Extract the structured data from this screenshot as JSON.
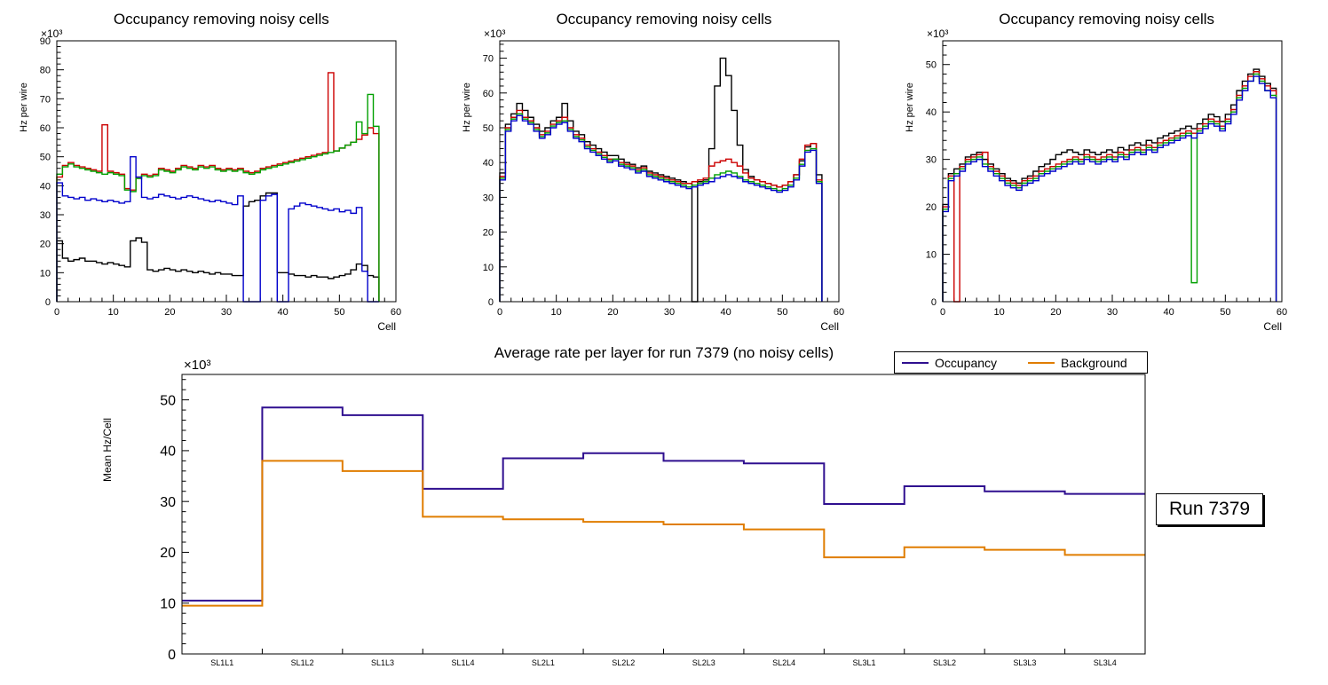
{
  "chart_data": [
    {
      "id": "occupancy-histogram-1",
      "type": "histogram-step",
      "title": "Occupancy removing noisy cells",
      "xlabel": "Cell",
      "ylabel": "Hz per wire",
      "y_exponent": "×10³",
      "xlim": [
        0,
        60
      ],
      "ylim": [
        0,
        90
      ],
      "x_major_ticks": [
        0,
        10,
        20,
        30,
        40,
        50,
        60
      ],
      "y_major_ticks": [
        0,
        10,
        20,
        30,
        40,
        50,
        60,
        70,
        80,
        90
      ],
      "bin_start": 0,
      "bin_width": 1,
      "close_ends": true,
      "grid": false,
      "series": [
        {
          "name": "series-black",
          "color": "#000000",
          "values": [
            21,
            15,
            14,
            14.5,
            15,
            14,
            14,
            13.5,
            13,
            13.5,
            13,
            12.5,
            12,
            21,
            22,
            20.5,
            11,
            10.5,
            11,
            11.5,
            11,
            10.5,
            11,
            10.5,
            10,
            10.5,
            10,
            9.5,
            10,
            9.5,
            9.5,
            9,
            9,
            33,
            34.5,
            35,
            36.5,
            37.5,
            37.5,
            10,
            10,
            9.5,
            9,
            9,
            8.5,
            9,
            8.5,
            8.5,
            8,
            8.5,
            9,
            9.5,
            11,
            13,
            12.5,
            9,
            8.5
          ]
        },
        {
          "name": "series-red",
          "color": "#cc0000",
          "values": [
            43,
            47,
            48,
            47,
            46.5,
            46,
            45.5,
            45,
            61,
            45,
            44.5,
            44,
            39,
            38.5,
            43,
            44,
            43.5,
            44,
            46,
            45.5,
            45,
            46,
            47,
            46.5,
            46,
            47,
            46.5,
            47,
            46,
            45.5,
            46,
            45.5,
            46,
            45,
            44.5,
            45,
            46,
            46.5,
            47,
            47.5,
            48,
            48.5,
            49,
            49.5,
            50,
            50.5,
            51,
            51.5,
            79,
            52,
            53,
            54,
            55,
            56,
            57.5,
            60,
            58
          ]
        },
        {
          "name": "series-green",
          "color": "#00a000",
          "values": [
            44,
            46.5,
            47.5,
            46.5,
            46,
            45.5,
            45,
            44.5,
            44,
            44.5,
            44,
            43.5,
            38.5,
            38,
            42.5,
            43.5,
            43,
            43.5,
            45.5,
            45,
            44.5,
            45.5,
            46.5,
            46,
            45.5,
            46.5,
            46,
            46.5,
            45.5,
            45,
            45.5,
            45,
            45.5,
            44.5,
            44,
            44.5,
            45.5,
            46,
            46.5,
            47,
            47.5,
            48,
            48.5,
            49,
            49.5,
            50,
            50.5,
            51,
            51.5,
            52,
            53,
            54,
            55,
            62,
            58,
            71.5,
            60.5
          ]
        },
        {
          "name": "series-blue",
          "color": "#0000cc",
          "values": [
            41,
            36.5,
            36,
            35.5,
            36,
            35,
            35.5,
            35,
            34.5,
            35,
            34.5,
            34,
            34.5,
            50,
            43,
            36,
            35.5,
            36,
            37,
            36.5,
            36,
            35.5,
            36,
            36.5,
            36,
            35.5,
            35,
            34.5,
            35,
            34.5,
            34,
            33.5,
            36.5,
            0,
            0,
            0,
            35,
            36.5,
            37,
            0,
            0,
            32,
            33,
            34,
            33.5,
            33,
            32.5,
            32,
            31.5,
            32,
            31,
            31.5,
            30.5,
            32.5,
            10.5,
            0,
            0
          ]
        }
      ]
    },
    {
      "id": "occupancy-histogram-2",
      "type": "histogram-step",
      "title": "Occupancy removing noisy cells",
      "xlabel": "Cell",
      "ylabel": "Hz per wire",
      "y_exponent": "×10³",
      "xlim": [
        0,
        60
      ],
      "ylim": [
        0,
        75
      ],
      "x_major_ticks": [
        0,
        10,
        20,
        30,
        40,
        50,
        60
      ],
      "y_major_ticks": [
        0,
        10,
        20,
        30,
        40,
        50,
        60,
        70
      ],
      "bin_start": 0,
      "bin_width": 1,
      "close_ends": true,
      "grid": false,
      "series": [
        {
          "name": "series-black",
          "color": "#000000",
          "values": [
            37,
            51,
            54,
            57,
            55,
            53,
            51,
            49,
            50,
            52,
            53,
            57,
            52,
            49,
            48,
            46,
            45,
            44,
            43,
            42,
            42,
            41,
            40,
            39.5,
            38.5,
            39,
            37.5,
            37,
            36.5,
            36,
            35.5,
            35,
            34.5,
            34,
            0,
            34.5,
            35,
            44,
            62,
            70,
            65,
            55,
            45,
            38,
            36,
            35,
            34.5,
            34,
            33.5,
            33,
            33.5,
            34.5,
            36.5,
            40.5,
            44.5,
            45.5,
            36.5
          ]
        },
        {
          "name": "series-red",
          "color": "#cc0000",
          "values": [
            36,
            50,
            53,
            55,
            53,
            52,
            50,
            48,
            49,
            51,
            52,
            53,
            50,
            48,
            47,
            45,
            44,
            43,
            42,
            41,
            41,
            40,
            39.5,
            39,
            38,
            38.5,
            37,
            36.5,
            36,
            35.5,
            35,
            34.5,
            34,
            34,
            34.5,
            35,
            35.5,
            39,
            40,
            40.5,
            41,
            40,
            39,
            37,
            35.5,
            35,
            34.5,
            34,
            33.5,
            33,
            33.5,
            34.5,
            36.5,
            41,
            45,
            45.5,
            35
          ]
        },
        {
          "name": "series-green",
          "color": "#00a000",
          "values": [
            35.5,
            49.5,
            52.5,
            54,
            52.5,
            51.5,
            49.5,
            47.5,
            48.5,
            50.5,
            51.5,
            52,
            49.5,
            47.5,
            46.5,
            44.5,
            43.5,
            42.5,
            41.5,
            40.5,
            41,
            39.5,
            39,
            38.5,
            37.5,
            38,
            36.5,
            36,
            35.5,
            35,
            34.5,
            34,
            33.5,
            33,
            33.5,
            34,
            34.5,
            35.5,
            36.5,
            37,
            37.5,
            37,
            36,
            35,
            34.5,
            34,
            33.5,
            33,
            32.5,
            32,
            32.5,
            33.5,
            35.5,
            39.5,
            43.5,
            44,
            34.5
          ]
        },
        {
          "name": "series-blue",
          "color": "#0000cc",
          "values": [
            35,
            49,
            52,
            53.5,
            52,
            51,
            49,
            47,
            48,
            50,
            51,
            51.5,
            49,
            47,
            46,
            44,
            43,
            42,
            41,
            40,
            40.5,
            39,
            38.5,
            38,
            37,
            37.5,
            36,
            35.5,
            35,
            34.5,
            34,
            33.5,
            33,
            32.5,
            33,
            33.5,
            34,
            34.5,
            35.5,
            36,
            36.5,
            36,
            35.5,
            34.5,
            34,
            33.5,
            33,
            32.5,
            32,
            31.5,
            32,
            33,
            35,
            39,
            43,
            43.5,
            34
          ]
        }
      ]
    },
    {
      "id": "occupancy-histogram-3",
      "type": "histogram-step",
      "title": "Occupancy removing noisy cells",
      "xlabel": "Cell",
      "ylabel": "Hz per wire",
      "y_exponent": "×10³",
      "xlim": [
        0,
        60
      ],
      "ylim": [
        0,
        55
      ],
      "x_major_ticks": [
        0,
        10,
        20,
        30,
        40,
        50,
        60
      ],
      "y_major_ticks": [
        0,
        10,
        20,
        30,
        40,
        50
      ],
      "bin_start": 0,
      "bin_width": 1,
      "close_ends": true,
      "grid": false,
      "series": [
        {
          "name": "series-black",
          "color": "#000000",
          "values": [
            20.5,
            27,
            28,
            29,
            30.5,
            31,
            31.5,
            30,
            29,
            28,
            27,
            26,
            25.5,
            25,
            26,
            26.5,
            27.5,
            28.5,
            29,
            30,
            31,
            31.5,
            32,
            31.5,
            31,
            32,
            31.5,
            31,
            31.5,
            32,
            31.5,
            32.5,
            32,
            33,
            33.5,
            33,
            34,
            33.5,
            34.5,
            35,
            35.5,
            36,
            36.5,
            37,
            36.5,
            37.5,
            38.5,
            39.5,
            39,
            38,
            39.5,
            41.5,
            44.5,
            46.5,
            48,
            49,
            47.5,
            46,
            45
          ]
        },
        {
          "name": "series-red",
          "color": "#cc0000",
          "values": [
            20,
            26.5,
            0,
            28.5,
            30,
            30.5,
            31,
            31.5,
            28.5,
            27.5,
            26.5,
            25.5,
            25,
            24.5,
            25.5,
            26,
            26.5,
            27.5,
            28,
            28.5,
            29,
            29.5,
            30,
            30.5,
            30,
            31,
            30.5,
            30,
            30.5,
            31,
            30.5,
            31.5,
            31,
            32,
            32.5,
            32,
            33,
            32.5,
            33.5,
            34,
            34.5,
            35,
            35.5,
            36,
            35.5,
            36.5,
            37.5,
            38.5,
            38,
            37,
            38.5,
            40.5,
            43.5,
            45.5,
            47.5,
            48.5,
            47,
            45.5,
            44.5
          ]
        },
        {
          "name": "series-green",
          "color": "#00a000",
          "values": [
            19.5,
            26,
            27,
            28,
            29.5,
            30,
            30.5,
            29,
            28,
            27,
            26,
            25,
            24.5,
            24,
            25,
            25.5,
            26,
            27,
            27.5,
            28,
            28.5,
            29,
            29.5,
            30,
            29.5,
            30.5,
            30,
            29.5,
            30,
            30.5,
            30,
            31,
            30.5,
            31.5,
            32,
            31.5,
            32.5,
            32,
            33,
            33.5,
            34,
            34.5,
            35,
            35.5,
            4,
            36,
            37,
            38,
            37.5,
            36.5,
            38,
            40,
            43,
            45,
            46.5,
            48,
            46.5,
            44.5,
            43.5
          ]
        },
        {
          "name": "series-blue",
          "color": "#0000cc",
          "values": [
            19,
            25.5,
            26.5,
            27.5,
            29,
            29.5,
            30,
            28.5,
            27.5,
            26.5,
            25.5,
            24.5,
            24,
            23.5,
            24.5,
            25,
            25.5,
            26.5,
            27,
            27.5,
            28,
            28.5,
            29,
            29.5,
            29,
            30,
            29.5,
            29,
            29.5,
            30,
            29.5,
            30.5,
            30,
            31,
            31.5,
            31,
            32,
            31.5,
            32.5,
            33,
            33.5,
            34,
            34.5,
            35,
            34.5,
            35.5,
            36.5,
            37.5,
            37,
            36,
            37.5,
            39.5,
            42.5,
            44.5,
            46.5,
            47.5,
            46,
            44.5,
            43
          ]
        }
      ]
    },
    {
      "id": "average-rate-per-layer",
      "type": "step",
      "title": "Average rate per layer for run 7379 (no noisy cells)",
      "ylabel": "Mean Hz/Cell",
      "y_exponent": "×10³",
      "ylim": [
        0,
        55
      ],
      "y_major_ticks": [
        0,
        10,
        20,
        30,
        40,
        50
      ],
      "categories": [
        "SL1L1",
        "SL1L2",
        "SL1L3",
        "SL1L4",
        "SL2L1",
        "SL2L2",
        "SL2L3",
        "SL2L4",
        "SL3L1",
        "SL3L2",
        "SL3L3",
        "SL3L4"
      ],
      "close_ends": false,
      "grid": false,
      "legend_position": "top-right",
      "annotation": "Run 7379",
      "series": [
        {
          "name": "Occupancy",
          "color": "#2f0f8f",
          "values": [
            10.5,
            48.5,
            47,
            32.5,
            38.5,
            39.5,
            38,
            37.5,
            29.5,
            33,
            32,
            31.5
          ]
        },
        {
          "name": "Background",
          "color": "#e07d00",
          "values": [
            9.5,
            38,
            36,
            27,
            26.5,
            26,
            25.5,
            24.5,
            19,
            21,
            20.5,
            19.5
          ]
        }
      ]
    }
  ]
}
